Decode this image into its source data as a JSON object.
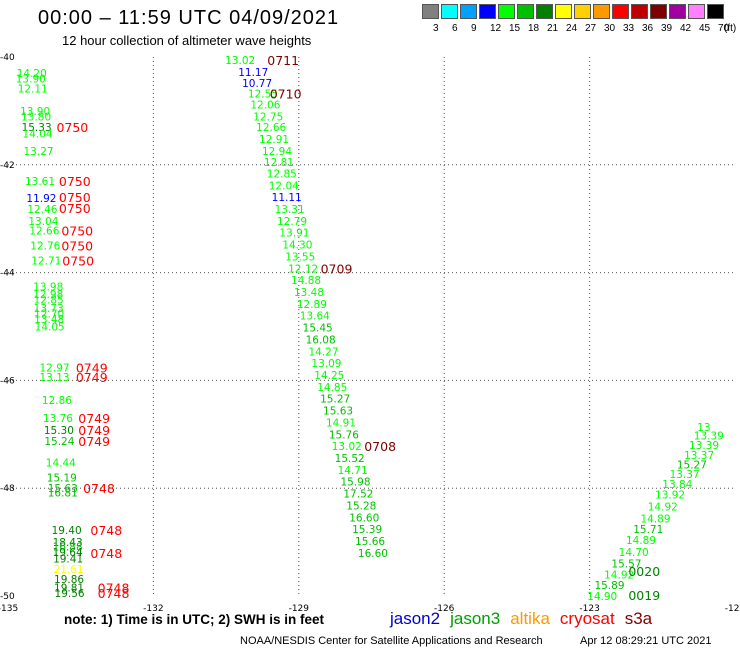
{
  "header": {
    "title": "00:00 – 11:59 UTC 04/09/2021",
    "subtitle": "12 hour collection of altimeter wave heights"
  },
  "legend": {
    "unit": "(ft)",
    "bins": [
      {
        "label": "3",
        "color": "#808080"
      },
      {
        "label": "6",
        "color": "#00ffff"
      },
      {
        "label": "9",
        "color": "#00a0ff"
      },
      {
        "label": "12",
        "color": "#0000ff"
      },
      {
        "label": "15",
        "color": "#00ff00"
      },
      {
        "label": "18",
        "color": "#00c000"
      },
      {
        "label": "21",
        "color": "#008000"
      },
      {
        "label": "24",
        "color": "#ffff00"
      },
      {
        "label": "27",
        "color": "#ffd000"
      },
      {
        "label": "30",
        "color": "#ff9900"
      },
      {
        "label": "33",
        "color": "#ff0000"
      },
      {
        "label": "36",
        "color": "#c00000"
      },
      {
        "label": "39",
        "color": "#800000"
      },
      {
        "label": "42",
        "color": "#a000a0"
      },
      {
        "label": "45",
        "color": "#ff80ff"
      },
      {
        "label": "70",
        "color": "#000000"
      }
    ]
  },
  "map": {
    "lon_range": [
      -135,
      -120
    ],
    "lat_range": [
      -50,
      -40
    ],
    "lon_ticks": [
      "-135",
      "-132",
      "-129",
      "-126",
      "-123",
      "-120"
    ],
    "lat_ticks": [
      "-40",
      "-42",
      "-44",
      "-46",
      "-48",
      "-50"
    ],
    "grid": true
  },
  "colors": {
    "c12": "#0000ff",
    "c15": "#00ff00",
    "c18": "#00c000",
    "c21": "#008000",
    "c24": "#ffff00",
    "time_red": "#ff0000",
    "time_dark": "#800000",
    "time_green": "#008000"
  },
  "wave_heights": [
    {
      "v": "13.02",
      "lon": -130.52,
      "lat": -40.06,
      "c": "c15"
    },
    {
      "v": "11.17",
      "lon": -130.25,
      "lat": -40.28,
      "c": "c12"
    },
    {
      "v": "10.77",
      "lon": -130.17,
      "lat": -40.48,
      "c": "c12"
    },
    {
      "v": "12.55",
      "lon": -130.05,
      "lat": -40.68,
      "c": "c15"
    },
    {
      "v": "12.06",
      "lon": -130.0,
      "lat": -40.88,
      "c": "c15"
    },
    {
      "v": "12.75",
      "lon": -129.94,
      "lat": -41.1,
      "c": "c15"
    },
    {
      "v": "12.66",
      "lon": -129.88,
      "lat": -41.3,
      "c": "c15"
    },
    {
      "v": "12.91",
      "lon": -129.82,
      "lat": -41.52,
      "c": "c15"
    },
    {
      "v": "12.94",
      "lon": -129.76,
      "lat": -41.74,
      "c": "c15"
    },
    {
      "v": "12.81",
      "lon": -129.72,
      "lat": -41.95,
      "c": "c15"
    },
    {
      "v": "12.85",
      "lon": -129.66,
      "lat": -42.16,
      "c": "c15"
    },
    {
      "v": "12.04",
      "lon": -129.62,
      "lat": -42.38,
      "c": "c15"
    },
    {
      "v": "11.11",
      "lon": -129.56,
      "lat": -42.6,
      "c": "c12"
    },
    {
      "v": "13.31",
      "lon": -129.5,
      "lat": -42.82,
      "c": "c15"
    },
    {
      "v": "12.79",
      "lon": -129.45,
      "lat": -43.04,
      "c": "c15"
    },
    {
      "v": "13.91",
      "lon": -129.4,
      "lat": -43.26,
      "c": "c15"
    },
    {
      "v": "14.30",
      "lon": -129.34,
      "lat": -43.48,
      "c": "c15"
    },
    {
      "v": "13.55",
      "lon": -129.28,
      "lat": -43.7,
      "c": "c15"
    },
    {
      "v": "12.12",
      "lon": -129.22,
      "lat": -43.92,
      "c": "c15"
    },
    {
      "v": "14.88",
      "lon": -129.16,
      "lat": -44.14,
      "c": "c15"
    },
    {
      "v": "13.48",
      "lon": -129.1,
      "lat": -44.36,
      "c": "c15"
    },
    {
      "v": "12.89",
      "lon": -129.04,
      "lat": -44.58,
      "c": "c15"
    },
    {
      "v": "13.64",
      "lon": -128.98,
      "lat": -44.8,
      "c": "c15"
    },
    {
      "v": "15.45",
      "lon": -128.92,
      "lat": -45.02,
      "c": "c18"
    },
    {
      "v": "16.08",
      "lon": -128.86,
      "lat": -45.24,
      "c": "c18"
    },
    {
      "v": "14.27",
      "lon": -128.8,
      "lat": -45.46,
      "c": "c15"
    },
    {
      "v": "13.09",
      "lon": -128.74,
      "lat": -45.68,
      "c": "c15"
    },
    {
      "v": "14.25",
      "lon": -128.68,
      "lat": -45.9,
      "c": "c15"
    },
    {
      "v": "14.85",
      "lon": -128.62,
      "lat": -46.12,
      "c": "c15"
    },
    {
      "v": "15.27",
      "lon": -128.56,
      "lat": -46.34,
      "c": "c18"
    },
    {
      "v": "15.63",
      "lon": -128.5,
      "lat": -46.56,
      "c": "c18"
    },
    {
      "v": "14.91",
      "lon": -128.44,
      "lat": -46.78,
      "c": "c15"
    },
    {
      "v": "15.76",
      "lon": -128.38,
      "lat": -47.0,
      "c": "c18"
    },
    {
      "v": "13.02",
      "lon": -128.32,
      "lat": -47.22,
      "c": "c15"
    },
    {
      "v": "15.52",
      "lon": -128.26,
      "lat": -47.44,
      "c": "c18"
    },
    {
      "v": "14.71",
      "lon": -128.2,
      "lat": -47.66,
      "c": "c15"
    },
    {
      "v": "15.98",
      "lon": -128.14,
      "lat": -47.88,
      "c": "c18"
    },
    {
      "v": "17.52",
      "lon": -128.08,
      "lat": -48.1,
      "c": "c18"
    },
    {
      "v": "15.28",
      "lon": -128.02,
      "lat": -48.32,
      "c": "c18"
    },
    {
      "v": "16.60",
      "lon": -127.96,
      "lat": -48.54,
      "c": "c18"
    },
    {
      "v": "15.39",
      "lon": -127.9,
      "lat": -48.76,
      "c": "c18"
    },
    {
      "v": "15.66",
      "lon": -127.84,
      "lat": -48.98,
      "c": "c18"
    },
    {
      "v": "16.60",
      "lon": -127.78,
      "lat": -49.2,
      "c": "c18"
    },
    {
      "v": "14.20",
      "lon": -134.82,
      "lat": -40.3,
      "c": "c15"
    },
    {
      "v": "13.90",
      "lon": -134.84,
      "lat": -40.4,
      "c": "c15"
    },
    {
      "v": "12.11",
      "lon": -134.8,
      "lat": -40.58,
      "c": "c15"
    },
    {
      "v": "13.90",
      "lon": -134.75,
      "lat": -41.0,
      "c": "c15"
    },
    {
      "v": "13.80",
      "lon": -134.73,
      "lat": -41.1,
      "c": "c15"
    },
    {
      "v": "15.33",
      "lon": -134.72,
      "lat": -41.3,
      "c": "c21"
    },
    {
      "v": "14.04",
      "lon": -134.7,
      "lat": -41.42,
      "c": "c15"
    },
    {
      "v": "13.27",
      "lon": -134.68,
      "lat": -41.74,
      "c": "c15"
    },
    {
      "v": "13.61",
      "lon": -134.65,
      "lat": -42.3,
      "c": "c15"
    },
    {
      "v": "11.92",
      "lon": -134.62,
      "lat": -42.62,
      "c": "c12"
    },
    {
      "v": "12.46",
      "lon": -134.6,
      "lat": -42.82,
      "c": "c15"
    },
    {
      "v": "13.04",
      "lon": -134.58,
      "lat": -43.04,
      "c": "c15"
    },
    {
      "v": "12.66",
      "lon": -134.56,
      "lat": -43.22,
      "c": "c15"
    },
    {
      "v": "12.76",
      "lon": -134.54,
      "lat": -43.5,
      "c": "c15"
    },
    {
      "v": "12.71",
      "lon": -134.52,
      "lat": -43.78,
      "c": "c15"
    },
    {
      "v": "13.98",
      "lon": -134.48,
      "lat": -44.26,
      "c": "c15"
    },
    {
      "v": "12.98",
      "lon": -134.48,
      "lat": -44.4,
      "c": "c15"
    },
    {
      "v": "12.85",
      "lon": -134.47,
      "lat": -44.5,
      "c": "c15"
    },
    {
      "v": "13.73",
      "lon": -134.47,
      "lat": -44.66,
      "c": "c15"
    },
    {
      "v": "12.70",
      "lon": -134.46,
      "lat": -44.76,
      "c": "c15"
    },
    {
      "v": "13.48",
      "lon": -134.46,
      "lat": -44.86,
      "c": "c15"
    },
    {
      "v": "14.05",
      "lon": -134.45,
      "lat": -45.0,
      "c": "c15"
    },
    {
      "v": "12.97",
      "lon": -134.35,
      "lat": -45.76,
      "c": "c15"
    },
    {
      "v": "13.13",
      "lon": -134.35,
      "lat": -45.94,
      "c": "c15"
    },
    {
      "v": "12.86",
      "lon": -134.3,
      "lat": -46.36,
      "c": "c15"
    },
    {
      "v": "13.76",
      "lon": -134.28,
      "lat": -46.7,
      "c": "c15"
    },
    {
      "v": "15.30",
      "lon": -134.26,
      "lat": -46.92,
      "c": "c21"
    },
    {
      "v": "15.24",
      "lon": -134.25,
      "lat": -47.12,
      "c": "c18"
    },
    {
      "v": "14.44",
      "lon": -134.22,
      "lat": -47.52,
      "c": "c15"
    },
    {
      "v": "15.19",
      "lon": -134.2,
      "lat": -47.8,
      "c": "c18"
    },
    {
      "v": "15.63",
      "lon": -134.18,
      "lat": -48.0,
      "c": "c18"
    },
    {
      "v": "16.81",
      "lon": -134.18,
      "lat": -48.08,
      "c": "c18"
    },
    {
      "v": "19.40",
      "lon": -134.1,
      "lat": -48.78,
      "c": "c21"
    },
    {
      "v": "18.43",
      "lon": -134.08,
      "lat": -49.0,
      "c": "c21"
    },
    {
      "v": "16.88",
      "lon": -134.08,
      "lat": -49.08,
      "c": "c18"
    },
    {
      "v": "19.64",
      "lon": -134.08,
      "lat": -49.18,
      "c": "c21"
    },
    {
      "v": "19.41",
      "lon": -134.07,
      "lat": -49.3,
      "c": "c21"
    },
    {
      "v": "21.61",
      "lon": -134.06,
      "lat": -49.5,
      "c": "c24"
    },
    {
      "v": "19.86",
      "lon": -134.05,
      "lat": -49.68,
      "c": "c21"
    },
    {
      "v": "19.81",
      "lon": -134.05,
      "lat": -49.84,
      "c": "c21"
    },
    {
      "v": "19.56",
      "lon": -134.04,
      "lat": -49.94,
      "c": "c21"
    },
    {
      "v": "14.90",
      "lon": -123.05,
      "lat": -50.0,
      "c": "c15"
    },
    {
      "v": "15.89",
      "lon": -122.9,
      "lat": -49.8,
      "c": "c18"
    },
    {
      "v": "14.92",
      "lon": -122.7,
      "lat": -49.6,
      "c": "c15"
    },
    {
      "v": "15.57",
      "lon": -122.55,
      "lat": -49.4,
      "c": "c18"
    },
    {
      "v": "14.70",
      "lon": -122.4,
      "lat": -49.18,
      "c": "c15"
    },
    {
      "v": "14.89",
      "lon": -122.25,
      "lat": -48.96,
      "c": "c15"
    },
    {
      "v": "15.71",
      "lon": -122.1,
      "lat": -48.76,
      "c": "c18"
    },
    {
      "v": "14.89",
      "lon": -121.95,
      "lat": -48.56,
      "c": "c15"
    },
    {
      "v": "14.92",
      "lon": -121.8,
      "lat": -48.34,
      "c": "c15"
    },
    {
      "v": "13.92",
      "lon": -121.65,
      "lat": -48.12,
      "c": "c15"
    },
    {
      "v": "13.84",
      "lon": -121.5,
      "lat": -47.92,
      "c": "c15"
    },
    {
      "v": "13.37",
      "lon": -121.35,
      "lat": -47.74,
      "c": "c15"
    },
    {
      "v": "15.27",
      "lon": -121.2,
      "lat": -47.56,
      "c": "c18"
    },
    {
      "v": "13.37",
      "lon": -121.05,
      "lat": -47.38,
      "c": "c15"
    },
    {
      "v": "13.39",
      "lon": -120.95,
      "lat": -47.2,
      "c": "c15"
    },
    {
      "v": "13.39",
      "lon": -120.85,
      "lat": -47.02,
      "c": "c15"
    },
    {
      "v": "13",
      "lon": -120.78,
      "lat": -46.86,
      "c": "c15"
    }
  ],
  "time_labels": [
    {
      "t": "0711",
      "lon": -129.65,
      "lat": -40.06,
      "c": "time_dark"
    },
    {
      "t": "0710",
      "lon": -129.6,
      "lat": -40.68,
      "c": "time_dark"
    },
    {
      "t": "0709",
      "lon": -128.55,
      "lat": -43.92,
      "c": "time_dark"
    },
    {
      "t": "0708",
      "lon": -127.65,
      "lat": -47.22,
      "c": "time_dark"
    },
    {
      "t": "0750",
      "lon": -134.0,
      "lat": -41.3,
      "c": "time_red"
    },
    {
      "t": "0750",
      "lon": -133.95,
      "lat": -42.3,
      "c": "time_red"
    },
    {
      "t": "0750",
      "lon": -133.95,
      "lat": -42.6,
      "c": "time_red"
    },
    {
      "t": "0750",
      "lon": -133.95,
      "lat": -42.8,
      "c": "time_red"
    },
    {
      "t": "0750",
      "lon": -133.9,
      "lat": -43.22,
      "c": "time_red"
    },
    {
      "t": "0750",
      "lon": -133.9,
      "lat": -43.5,
      "c": "time_red"
    },
    {
      "t": "0750",
      "lon": -133.88,
      "lat": -43.78,
      "c": "time_red"
    },
    {
      "t": "0749",
      "lon": -133.6,
      "lat": -45.76,
      "c": "time_red"
    },
    {
      "t": "0749",
      "lon": -133.6,
      "lat": -45.94,
      "c": "time_red"
    },
    {
      "t": "0749",
      "lon": -133.55,
      "lat": -46.7,
      "c": "time_red"
    },
    {
      "t": "0749",
      "lon": -133.55,
      "lat": -46.92,
      "c": "time_red"
    },
    {
      "t": "0749",
      "lon": -133.55,
      "lat": -47.12,
      "c": "time_red"
    },
    {
      "t": "0748",
      "lon": -133.45,
      "lat": -48.0,
      "c": "time_red"
    },
    {
      "t": "0748",
      "lon": -133.3,
      "lat": -48.78,
      "c": "time_red"
    },
    {
      "t": "0748",
      "lon": -133.3,
      "lat": -49.2,
      "c": "time_red"
    },
    {
      "t": "0748",
      "lon": -133.15,
      "lat": -49.84,
      "c": "time_red"
    },
    {
      "t": "0748",
      "lon": -133.15,
      "lat": -49.94,
      "c": "time_red"
    },
    {
      "t": "0020",
      "lon": -122.2,
      "lat": -49.54,
      "c": "time_green"
    },
    {
      "t": "0019",
      "lon": -122.2,
      "lat": -49.98,
      "c": "time_green"
    }
  ],
  "note": "note: 1) Time is in UTC; 2) SWH is in feet",
  "satellites": [
    {
      "name": "jason2",
      "color": "#0000cc"
    },
    {
      "name": "jason3",
      "color": "#00a000"
    },
    {
      "name": "altika",
      "color": "#ff9900"
    },
    {
      "name": "cryosat",
      "color": "#ff0000"
    },
    {
      "name": "s3a",
      "color": "#800000"
    }
  ],
  "footer": {
    "org": "NOAA/NESDIS Center for Satellite Applications and Research",
    "time": "Apr 12 08:29:21 UTC 2021"
  }
}
